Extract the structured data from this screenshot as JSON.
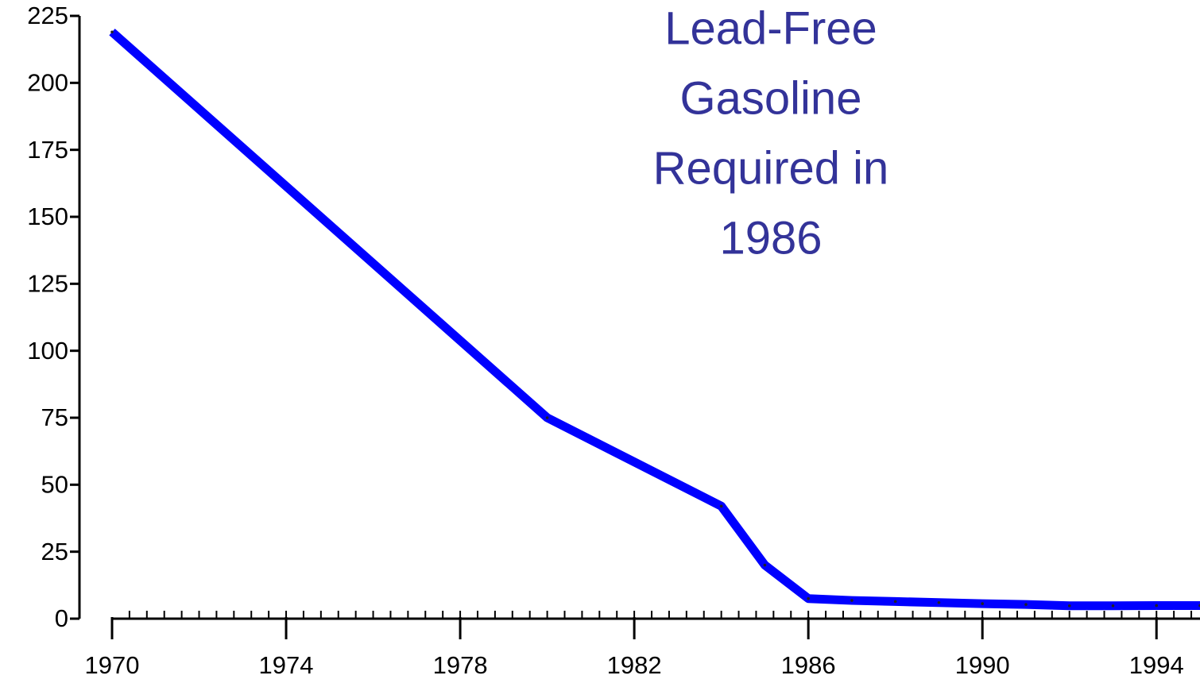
{
  "chart_data": {
    "type": "line",
    "annotation_lines": [
      "Lead-Free",
      "Gasoline",
      "Required in",
      "1986"
    ],
    "x": [
      1970,
      1980,
      1984,
      1985,
      1986,
      1987,
      1988,
      1989,
      1990,
      1991,
      1992,
      1993,
      1994,
      1995
    ],
    "series": [
      {
        "color": "#0000ff",
        "values": [
          219,
          75,
          42,
          20,
          7.5,
          6.8,
          6.4,
          6,
          5.6,
          5.3,
          4.8,
          4.8,
          4.9,
          4.9
        ]
      }
    ],
    "xlim": [
      1970,
      1995
    ],
    "xticks": [
      1970,
      1974,
      1978,
      1982,
      1986,
      1990,
      1994
    ],
    "xminor_step": 0.4,
    "ylim": [
      0,
      225
    ],
    "yticks": [
      0,
      25,
      50,
      75,
      100,
      125,
      150,
      175,
      200,
      225
    ]
  }
}
